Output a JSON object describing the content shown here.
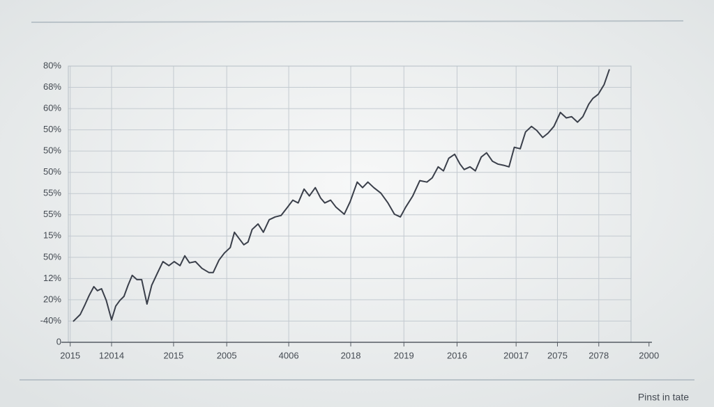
{
  "chart_data": {
    "type": "line",
    "x": [
      2.0,
      3.2,
      4.0,
      4.7,
      5.5,
      6.1,
      6.8,
      7.6,
      8.5,
      9.2,
      9.9,
      10.6,
      11.3,
      12.0,
      12.8,
      13.6,
      14.5,
      15.3,
      16.3,
      17.2,
      18.2,
      19.1,
      20.1,
      20.9,
      21.7,
      22.7,
      23.8,
      25.0,
      25.7,
      26.7,
      27.6,
      28.6,
      29.3,
      30.0,
      30.9,
      31.6,
      32.3,
      33.3,
      34.2,
      35.2,
      36.2,
      37.2,
      38.3,
      39.2,
      40.1,
      41.1,
      42.0,
      43.0,
      43.9,
      44.6,
      45.6,
      46.5,
      47.9,
      48.9,
      50.1,
      51.0,
      51.9,
      52.9,
      54.1,
      55.3,
      56.4,
      57.4,
      58.3,
      59.5,
      60.7,
      61.9,
      62.8,
      63.8,
      64.7,
      65.6,
      66.6,
      67.5,
      68.2,
      69.2,
      70.1,
      71.1,
      72.0,
      73.0,
      73.9,
      74.9,
      75.8,
      76.7,
      77.7,
      78.6,
      79.6,
      80.5,
      81.5,
      82.4,
      83.4,
      84.5,
      85.5,
      86.4,
      87.4,
      88.3,
      89.3,
      90.0,
      90.9,
      91.9,
      92.8
    ],
    "series": [
      {
        "color": "#3a3f4a",
        "values": [
          0.98,
          1.31,
          1.77,
          2.2,
          2.62,
          2.43,
          2.52,
          1.97,
          1.05,
          1.7,
          1.97,
          2.16,
          2.69,
          3.15,
          2.95,
          2.95,
          1.8,
          2.69,
          3.28,
          3.8,
          3.61,
          3.8,
          3.61,
          4.07,
          3.74,
          3.8,
          3.48,
          3.28,
          3.28,
          3.87,
          4.2,
          4.46,
          5.18,
          4.92,
          4.59,
          4.72,
          5.31,
          5.57,
          5.18,
          5.77,
          5.9,
          5.97,
          6.36,
          6.69,
          6.56,
          7.21,
          6.89,
          7.28,
          6.79,
          6.56,
          6.69,
          6.36,
          6.03,
          6.62,
          7.54,
          7.28,
          7.54,
          7.28,
          7.02,
          6.56,
          6.03,
          5.9,
          6.36,
          6.89,
          7.61,
          7.54,
          7.74,
          8.26,
          8.07,
          8.66,
          8.85,
          8.39,
          8.13,
          8.26,
          8.07,
          8.72,
          8.92,
          8.52,
          8.39,
          8.33,
          8.26,
          9.18,
          9.11,
          9.9,
          10.16,
          9.97,
          9.64,
          9.84,
          10.16,
          10.82,
          10.56,
          10.62,
          10.36,
          10.62,
          11.21,
          11.48,
          11.67,
          12.13,
          12.85
        ]
      }
    ],
    "xlim": [
      0,
      100
    ],
    "xticks": [
      {
        "value": 1.5,
        "label": "2015"
      },
      {
        "value": 8.5,
        "label": "12014"
      },
      {
        "value": 19,
        "label": "2015"
      },
      {
        "value": 28,
        "label": "2005"
      },
      {
        "value": 38.5,
        "label": "4006"
      },
      {
        "value": 49,
        "label": "2018"
      },
      {
        "value": 58,
        "label": "2019"
      },
      {
        "value": 67,
        "label": "2016"
      },
      {
        "value": 77,
        "label": "20017"
      },
      {
        "value": 84,
        "label": "2075"
      },
      {
        "value": 91,
        "label": "2078"
      },
      {
        "value": 99.5,
        "label": "2000"
      }
    ],
    "ylim": [
      0,
      13
    ],
    "yticks": [
      0,
      {
        "value": 1,
        "label": "-40%"
      },
      {
        "value": 2,
        "label": "20%"
      },
      {
        "value": 3,
        "label": "12%"
      },
      {
        "value": 4,
        "label": "50%"
      },
      {
        "value": 5,
        "label": "15%"
      },
      {
        "value": 6,
        "label": "55%"
      },
      {
        "value": 7,
        "label": "55%"
      },
      {
        "value": 8,
        "label": "50%"
      },
      {
        "value": 9,
        "label": "50%"
      },
      {
        "value": 10,
        "label": "50%"
      },
      {
        "value": 11,
        "label": "60%"
      },
      {
        "value": 12,
        "label": "68%"
      },
      {
        "value": 13,
        "label": "80%"
      }
    ],
    "grid": true
  },
  "footer": "Pinst in tate"
}
